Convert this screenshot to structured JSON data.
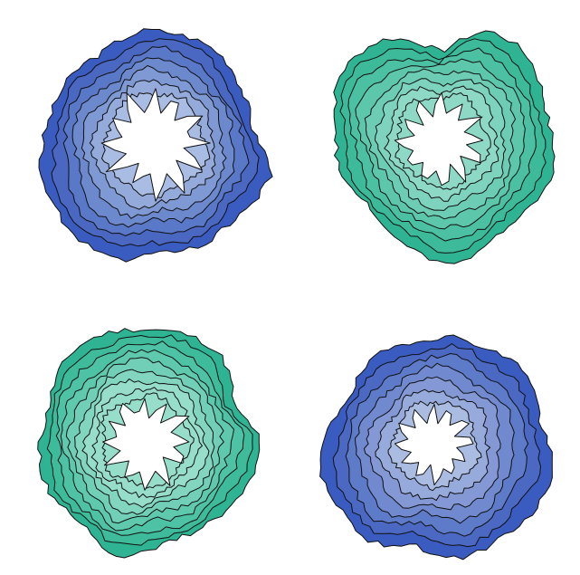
{
  "figures": [
    {
      "name": "blob-top-left",
      "palette": [
        "#3a5bbf",
        "#4a67c2",
        "#5a78c8",
        "#6d89ce",
        "#7f99d4",
        "#94aadb",
        "#a9bce3"
      ],
      "inner": "#ffffff"
    },
    {
      "name": "blob-top-right",
      "palette": [
        "#2fb493",
        "#3cba9a",
        "#4cc0a2",
        "#5cc7ab",
        "#6ccdb4",
        "#7dd3bd",
        "#8ed9c6"
      ],
      "inner": "#ffffff"
    },
    {
      "name": "blob-bottom-left",
      "palette": [
        "#2fb493",
        "#3dbb9b",
        "#4dc2a4",
        "#5ec9ad",
        "#70cfb6",
        "#82d6c0",
        "#96ddca"
      ],
      "inner": "#ffffff"
    },
    {
      "name": "blob-bottom-right",
      "palette": [
        "#3a5bbf",
        "#4b69c3",
        "#5e7bc9",
        "#7089cf",
        "#8398d5",
        "#97aadc",
        "#abbce3"
      ],
      "inner": "#ffffff"
    }
  ]
}
